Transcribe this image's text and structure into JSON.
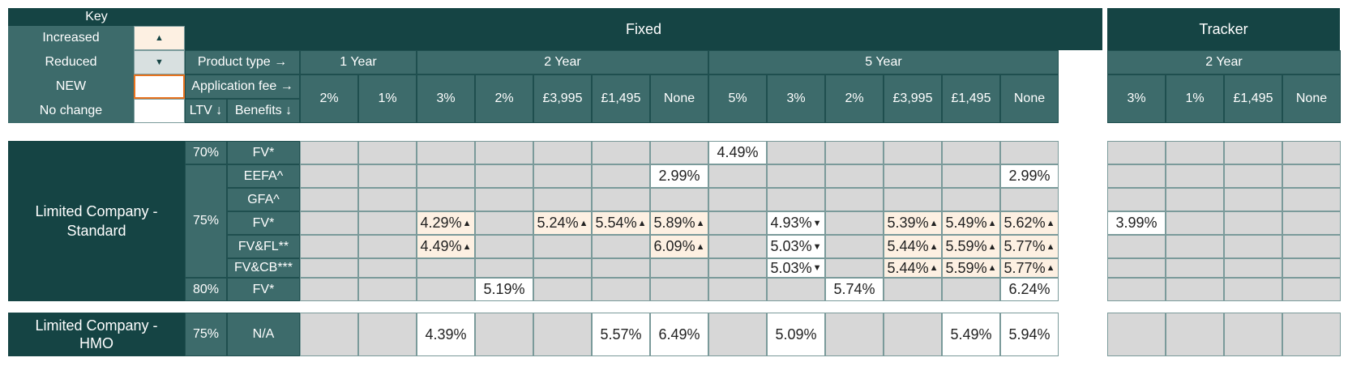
{
  "key": {
    "title": "Key",
    "items": [
      {
        "label": "Increased",
        "swatch": "▲",
        "color": "#fdf0e2"
      },
      {
        "label": "Reduced",
        "swatch": "▼",
        "color": "#d8e0e0"
      },
      {
        "label": "NEW",
        "swatch": "",
        "color": "#ffffff"
      },
      {
        "label": "No change",
        "swatch": "",
        "color": "#ffffff"
      }
    ]
  },
  "headers": {
    "fixed": "Fixed",
    "tracker": "Tracker",
    "product_type": "Product type →",
    "application_fee": "Application fee →",
    "ltv": "LTV ↓",
    "benefits": "Benefits ↓",
    "terms": [
      "1 Year",
      "2 Year",
      "5 Year",
      "2 Year"
    ],
    "fees": [
      "2%",
      "1%",
      "3%",
      "2%",
      "£3,995",
      "£1,495",
      "None",
      "5%",
      "3%",
      "2%",
      "£3,995",
      "£1,495",
      "None",
      "3%",
      "1%",
      "£1,495",
      "None"
    ]
  },
  "sections": {
    "standard": "Limited Company - Standard",
    "hmo": "Limited Company - HMO"
  },
  "ltv": [
    "70%",
    "75%",
    "80%",
    "75%"
  ],
  "benefits": [
    "FV*",
    "EEFA^",
    "GFA^",
    "FV*",
    "FV&FL**",
    "FV&CB***",
    "FV*",
    "N/A"
  ],
  "rows": [
    [
      null,
      null,
      null,
      null,
      null,
      null,
      null,
      {
        "v": "4.49%"
      },
      null,
      null,
      null,
      null,
      null,
      null,
      null,
      null,
      null
    ],
    [
      null,
      null,
      null,
      null,
      null,
      null,
      {
        "v": "2.99%"
      },
      null,
      null,
      null,
      null,
      null,
      {
        "v": "2.99%"
      },
      null,
      null,
      null,
      null
    ],
    [
      null,
      null,
      null,
      null,
      null,
      null,
      null,
      null,
      null,
      null,
      null,
      null,
      null,
      null,
      null,
      null,
      null
    ],
    [
      null,
      null,
      {
        "v": "4.29%",
        "a": "▲"
      },
      null,
      {
        "v": "5.24%",
        "a": "▲"
      },
      {
        "v": "5.54%",
        "a": "▲"
      },
      {
        "v": "5.89%",
        "a": "▲"
      },
      null,
      {
        "v": "4.93%",
        "a": "▼"
      },
      null,
      {
        "v": "5.39%",
        "a": "▲"
      },
      {
        "v": "5.49%",
        "a": "▲"
      },
      {
        "v": "5.62%",
        "a": "▲"
      },
      {
        "v": "3.99%"
      },
      null,
      null,
      null
    ],
    [
      null,
      null,
      {
        "v": "4.49%",
        "a": "▲"
      },
      null,
      null,
      null,
      {
        "v": "6.09%",
        "a": "▲"
      },
      null,
      {
        "v": "5.03%",
        "a": "▼"
      },
      null,
      {
        "v": "5.44%",
        "a": "▲"
      },
      {
        "v": "5.59%",
        "a": "▲"
      },
      {
        "v": "5.77%",
        "a": "▲"
      },
      null,
      null,
      null,
      null
    ],
    [
      null,
      null,
      null,
      null,
      null,
      null,
      null,
      null,
      {
        "v": "5.03%",
        "a": "▼"
      },
      null,
      {
        "v": "5.44%",
        "a": "▲"
      },
      {
        "v": "5.59%",
        "a": "▲"
      },
      {
        "v": "5.77%",
        "a": "▲"
      },
      null,
      null,
      null,
      null
    ],
    [
      null,
      null,
      null,
      {
        "v": "5.19%"
      },
      null,
      null,
      null,
      null,
      null,
      {
        "v": "5.74%"
      },
      null,
      null,
      {
        "v": "6.24%"
      },
      null,
      null,
      null,
      null
    ],
    [
      null,
      null,
      {
        "v": "4.39%"
      },
      null,
      null,
      {
        "v": "5.57%"
      },
      {
        "v": "6.49%"
      },
      null,
      {
        "v": "5.09%"
      },
      null,
      null,
      {
        "v": "5.49%"
      },
      {
        "v": "5.94%"
      },
      null,
      null,
      null,
      null
    ]
  ],
  "colors": {
    "dark": "#154444",
    "mid": "#3d6b6b",
    "increased": "#fdf0e2",
    "grey": "#d7d7d7",
    "new_border": "#e8731f"
  }
}
